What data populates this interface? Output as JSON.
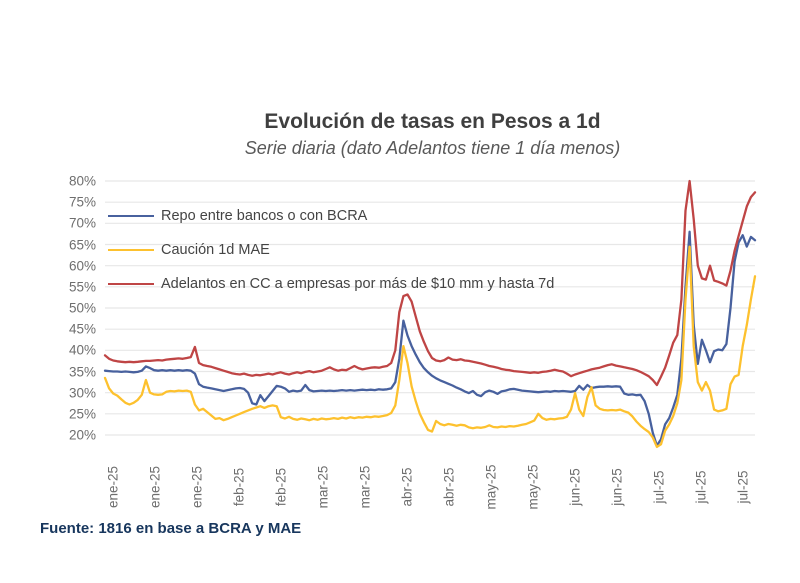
{
  "source": "Fuente: 1816 en base a BCRA y MAE",
  "chart_data": {
    "type": "line",
    "title": "Evolución de tasas en Pesos a 1d",
    "subtitle": "Serie diaria (dato Adelantos tiene 1 día menos)",
    "xlabel": "",
    "ylabel": "",
    "ylim": [
      20,
      80
    ],
    "y_tick_step": 5,
    "y_tick_labels": [
      "80%",
      "75%",
      "70%",
      "65%",
      "60%",
      "55%",
      "50%",
      "45%",
      "40%",
      "35%",
      "30%",
      "25%",
      "20%"
    ],
    "x_tick_labels": [
      "ene-25",
      "ene-25",
      "ene-25",
      "feb-25",
      "feb-25",
      "mar-25",
      "mar-25",
      "abr-25",
      "abr-25",
      "may-25",
      "may-25",
      "jun-25",
      "jun-25",
      "jul-25",
      "jul-25",
      "jul-25"
    ],
    "grid": true,
    "legend_position": "top-left-inside",
    "series": [
      {
        "name": "Repo entre bancos o con BCRA",
        "color": "#48619e",
        "values": [
          35.2,
          35.1,
          35.0,
          35.0,
          34.9,
          35.0,
          34.9,
          34.8,
          34.9,
          35.2,
          36.2,
          35.8,
          35.3,
          35.2,
          35.3,
          35.2,
          35.3,
          35.2,
          35.3,
          35.2,
          35.3,
          35.2,
          34.5,
          32.0,
          31.4,
          31.2,
          31.0,
          30.8,
          30.6,
          30.4,
          30.6,
          30.8,
          31.0,
          31.1,
          30.9,
          30.0,
          27.5,
          27.2,
          29.4,
          28.0,
          29.2,
          30.4,
          31.6,
          31.4,
          31.0,
          30.2,
          30.5,
          30.3,
          30.5,
          31.8,
          30.6,
          30.3,
          30.4,
          30.5,
          30.4,
          30.5,
          30.4,
          30.5,
          30.6,
          30.5,
          30.6,
          30.5,
          30.6,
          30.7,
          30.6,
          30.7,
          30.6,
          30.8,
          30.7,
          30.8,
          31.0,
          32.5,
          38.0,
          47.0,
          43.5,
          41.0,
          39.0,
          37.2,
          35.8,
          34.8,
          34.0,
          33.4,
          32.9,
          32.5,
          32.1,
          31.7,
          31.2,
          30.8,
          30.3,
          29.9,
          30.4,
          29.5,
          29.2,
          30.1,
          30.5,
          30.2,
          29.7,
          30.3,
          30.5,
          30.8,
          30.9,
          30.7,
          30.5,
          30.4,
          30.3,
          30.2,
          30.1,
          30.2,
          30.3,
          30.2,
          30.4,
          30.3,
          30.4,
          30.3,
          30.2,
          30.4,
          31.6,
          30.7,
          31.8,
          31.1,
          31.3,
          31.4,
          31.4,
          31.5,
          31.4,
          31.5,
          31.4,
          29.8,
          29.5,
          29.6,
          29.4,
          29.5,
          28.0,
          25.0,
          20.5,
          17.5,
          19.0,
          22.5,
          24.0,
          26.5,
          29.5,
          38.0,
          55.0,
          68.0,
          46.0,
          36.8,
          42.5,
          40.0,
          37.2,
          39.8,
          40.2,
          40.0,
          41.5,
          50.0,
          61.0,
          65.5,
          67.2,
          64.5,
          66.8,
          66.0
        ]
      },
      {
        "name": "Caución 1d MAE",
        "color": "#fdc12e",
        "values": [
          33.5,
          31.0,
          29.8,
          29.3,
          28.4,
          27.6,
          27.2,
          27.6,
          28.3,
          29.5,
          33.0,
          30.0,
          29.6,
          29.5,
          29.6,
          30.2,
          30.4,
          30.3,
          30.5,
          30.4,
          30.5,
          30.2,
          27.2,
          25.8,
          26.2,
          25.4,
          24.6,
          23.8,
          24.0,
          23.5,
          23.8,
          24.2,
          24.6,
          25.0,
          25.4,
          25.8,
          26.2,
          26.5,
          26.8,
          26.4,
          26.8,
          27.0,
          26.8,
          24.2,
          23.9,
          24.3,
          23.8,
          23.6,
          23.9,
          23.7,
          23.5,
          23.8,
          23.6,
          23.9,
          23.7,
          23.8,
          24.0,
          23.8,
          24.1,
          23.9,
          24.2,
          24.0,
          24.2,
          24.1,
          24.3,
          24.2,
          24.4,
          24.3,
          24.5,
          24.7,
          25.2,
          27.0,
          33.0,
          41.0,
          37.0,
          31.5,
          28.0,
          25.0,
          23.0,
          21.2,
          20.8,
          23.3,
          22.6,
          22.3,
          22.6,
          22.4,
          22.2,
          22.4,
          22.3,
          21.8,
          21.6,
          21.8,
          21.7,
          21.9,
          22.3,
          21.9,
          21.8,
          22.0,
          21.9,
          22.1,
          22.0,
          22.2,
          22.4,
          22.6,
          23.0,
          23.4,
          25.0,
          24.0,
          23.6,
          23.8,
          23.7,
          23.9,
          24.0,
          24.3,
          26.0,
          29.9,
          26.0,
          24.5,
          29.0,
          31.3,
          27.0,
          26.2,
          25.9,
          25.8,
          25.9,
          25.8,
          26.0,
          25.6,
          25.3,
          24.4,
          23.2,
          22.2,
          21.4,
          20.7,
          19.4,
          17.2,
          17.8,
          21.0,
          22.5,
          24.5,
          27.5,
          33.0,
          52.0,
          64.5,
          41.0,
          32.5,
          30.5,
          32.5,
          30.5,
          26.0,
          25.6,
          25.8,
          26.2,
          32.0,
          33.8,
          34.2,
          41.0,
          46.0,
          52.0,
          57.5
        ]
      },
      {
        "name": "Adelantos en CC a empresas por más de $10 mm y hasta 7d",
        "color": "#bf4545",
        "values": [
          38.8,
          38.0,
          37.6,
          37.4,
          37.3,
          37.2,
          37.3,
          37.2,
          37.3,
          37.4,
          37.5,
          37.5,
          37.6,
          37.7,
          37.6,
          37.8,
          37.9,
          38.0,
          38.1,
          38.0,
          38.2,
          38.4,
          40.8,
          37.0,
          36.5,
          36.3,
          36.1,
          35.8,
          35.5,
          35.2,
          34.9,
          34.6,
          34.4,
          34.3,
          34.5,
          34.2,
          34.0,
          34.2,
          34.1,
          34.3,
          34.5,
          34.3,
          34.6,
          34.8,
          34.5,
          34.3,
          34.6,
          34.8,
          34.6,
          34.9,
          35.1,
          34.8,
          35.0,
          35.2,
          35.6,
          36.0,
          35.5,
          35.2,
          35.4,
          35.3,
          35.8,
          36.3,
          35.8,
          35.5,
          35.7,
          35.9,
          36.0,
          35.9,
          36.1,
          36.3,
          37.0,
          40.0,
          49.0,
          52.8,
          53.2,
          51.5,
          48.0,
          44.5,
          42.0,
          39.8,
          38.2,
          37.6,
          37.4,
          37.7,
          38.3,
          37.8,
          37.7,
          37.9,
          37.6,
          37.5,
          37.3,
          37.1,
          36.9,
          36.6,
          36.3,
          36.1,
          35.9,
          35.6,
          35.4,
          35.3,
          35.1,
          35.0,
          34.9,
          34.8,
          34.7,
          34.8,
          34.7,
          34.9,
          35.0,
          35.2,
          35.4,
          35.2,
          35.0,
          34.5,
          33.9,
          34.3,
          34.6,
          34.9,
          35.2,
          35.5,
          35.7,
          35.9,
          36.2,
          36.5,
          36.7,
          36.4,
          36.2,
          36.0,
          35.8,
          35.6,
          35.3,
          34.9,
          34.4,
          33.9,
          33.0,
          31.8,
          33.8,
          35.9,
          38.8,
          41.8,
          43.6,
          52.0,
          73.0,
          80.0,
          71.0,
          60.0,
          57.0,
          56.7,
          60.0,
          56.5,
          56.2,
          55.8,
          55.3,
          58.8,
          63.5,
          67.0,
          70.5,
          74.0,
          76.2,
          77.3
        ]
      }
    ]
  }
}
